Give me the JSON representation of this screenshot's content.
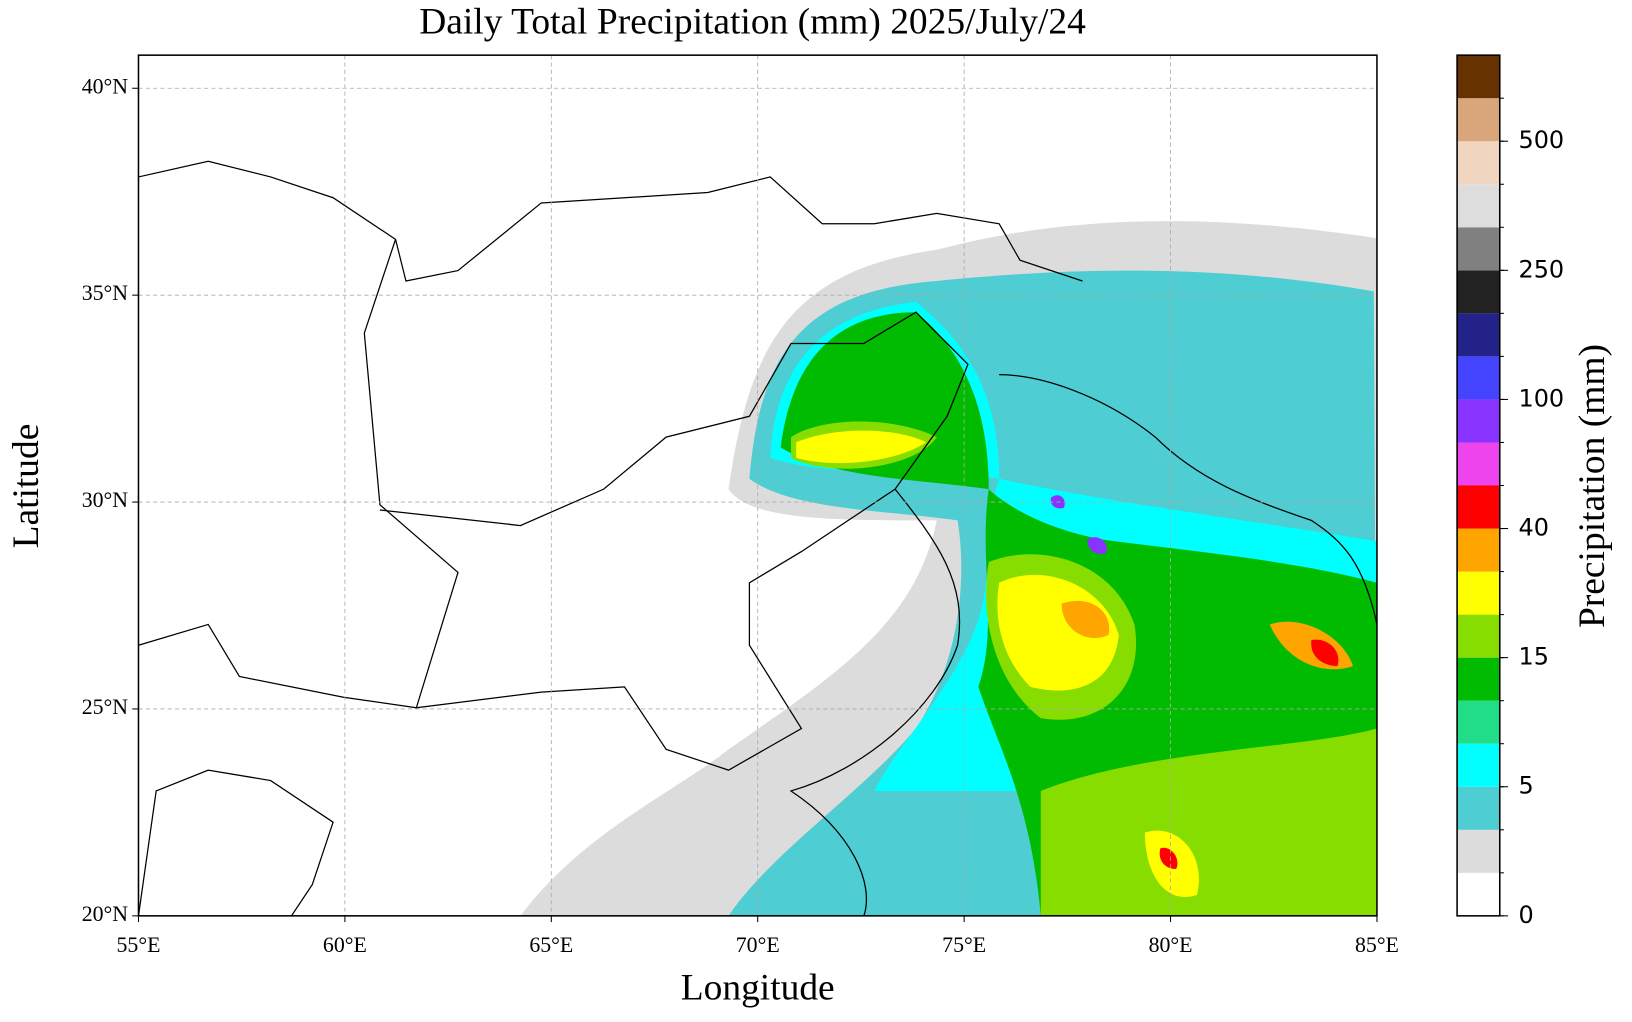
{
  "chart_data": {
    "type": "map",
    "title": "Daily Total Precipitation (mm)  2025/July/24",
    "x_label": "Longitude",
    "y_label": "Latitude",
    "xlim": [
      55,
      85
    ],
    "ylim": [
      20,
      40.8
    ],
    "xticks": [
      {
        "value": 55,
        "label": "55°E"
      },
      {
        "value": 60,
        "label": "60°E"
      },
      {
        "value": 65,
        "label": "65°E"
      },
      {
        "value": 70,
        "label": "70°E"
      },
      {
        "value": 75,
        "label": "75°E"
      },
      {
        "value": 80,
        "label": "80°E"
      },
      {
        "value": 85,
        "label": "85°E"
      }
    ],
    "yticks": [
      {
        "value": 20,
        "label": "20°N"
      },
      {
        "value": 25,
        "label": "25°N"
      },
      {
        "value": 30,
        "label": "30°N"
      },
      {
        "value": 35,
        "label": "35°N"
      },
      {
        "value": 40,
        "label": "40°N"
      }
    ],
    "grid": true,
    "colorbar": {
      "label": "Precipitation (mm)",
      "colors": [
        "#ffffff",
        "#dcdcdc",
        "#4ecdd2",
        "#00ffff",
        "#22dd88",
        "#00bb00",
        "#88dd00",
        "#ffff00",
        "#ffa500",
        "#ff0000",
        "#ee44ee",
        "#8833ff",
        "#4444ff",
        "#222288",
        "#222222",
        "#808080",
        "#dddddd",
        "#f0d5c0",
        "#d9a57a",
        "#663300"
      ],
      "ticks": [
        0,
        5,
        15,
        40,
        100,
        250,
        500
      ]
    }
  }
}
